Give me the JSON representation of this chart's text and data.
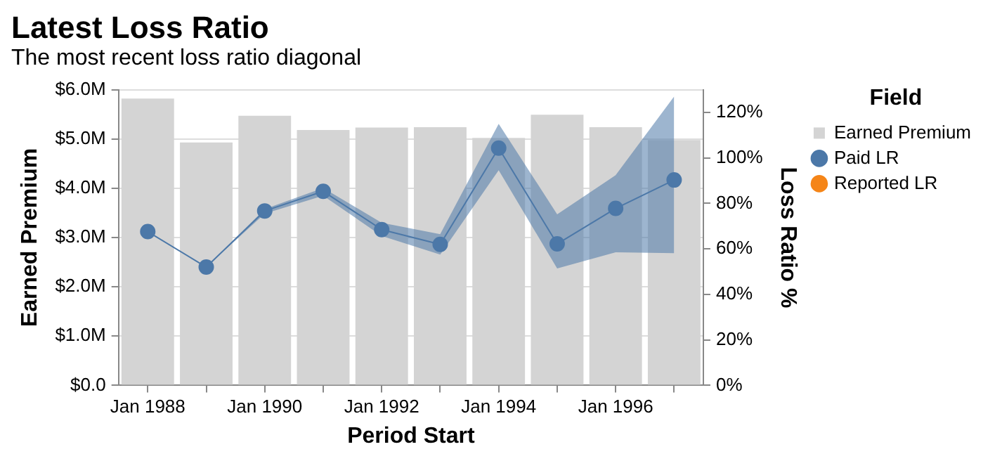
{
  "chart_data": {
    "type": "bar",
    "title": "Latest Loss Ratio",
    "subtitle": "The most recent loss ratio diagonal",
    "xlabel": "Period Start",
    "ylabel": "Earned Premium",
    "y2label": "Loss Ratio %",
    "legend_title": "Field",
    "categories": [
      "Jan 1988",
      null,
      "Jan 1990",
      null,
      "Jan 1992",
      null,
      "Jan 1994",
      null,
      "Jan 1996",
      null
    ],
    "series": [
      {
        "name": "Earned Premium",
        "color": "#d4d4d4",
        "values": [
          5820000,
          4930000,
          5470000,
          5180000,
          5230000,
          5240000,
          5020000,
          5490000,
          5240000,
          4980000
        ]
      },
      {
        "name": "Paid LR",
        "type": "line",
        "axis": "y2",
        "color": "#4c78a8",
        "values": [
          67.6,
          52,
          76.7,
          85.3,
          68.5,
          62,
          104.3,
          62.2,
          77.8,
          90.3
        ],
        "lower": [
          67.6,
          52,
          75.5,
          83.4,
          65.7,
          57.5,
          94.6,
          51.4,
          58.5,
          58.1
        ],
        "upper": [
          67.6,
          52,
          77.5,
          86.8,
          71.5,
          66.5,
          115,
          75.2,
          92.4,
          127
        ]
      },
      {
        "name": "Reported LR",
        "type": "line",
        "axis": "y2",
        "color": "#f58518",
        "values": [
          null,
          null,
          null,
          null,
          null,
          null,
          null,
          null,
          null,
          null
        ]
      }
    ],
    "ylim": [
      0,
      6000000
    ],
    "yticks": [
      {
        "value": 0,
        "label": "$0.0"
      },
      {
        "value": 1000000,
        "label": "$1.0M"
      },
      {
        "value": 2000000,
        "label": "$2.0M"
      },
      {
        "value": 3000000,
        "label": "$3.0M"
      },
      {
        "value": 4000000,
        "label": "$4.0M"
      },
      {
        "value": 5000000,
        "label": "$5.0M"
      },
      {
        "value": 6000000,
        "label": "$6.0M"
      }
    ],
    "y2lim": [
      0,
      130
    ],
    "y2ticks": [
      {
        "value": 0,
        "label": "0%"
      },
      {
        "value": 20,
        "label": "20%"
      },
      {
        "value": 40,
        "label": "40%"
      },
      {
        "value": 60,
        "label": "60%"
      },
      {
        "value": 80,
        "label": "80%"
      },
      {
        "value": 100,
        "label": "100%"
      },
      {
        "value": 120,
        "label": "120%"
      }
    ],
    "grid": "y",
    "legend": "right",
    "marker": "circle"
  }
}
